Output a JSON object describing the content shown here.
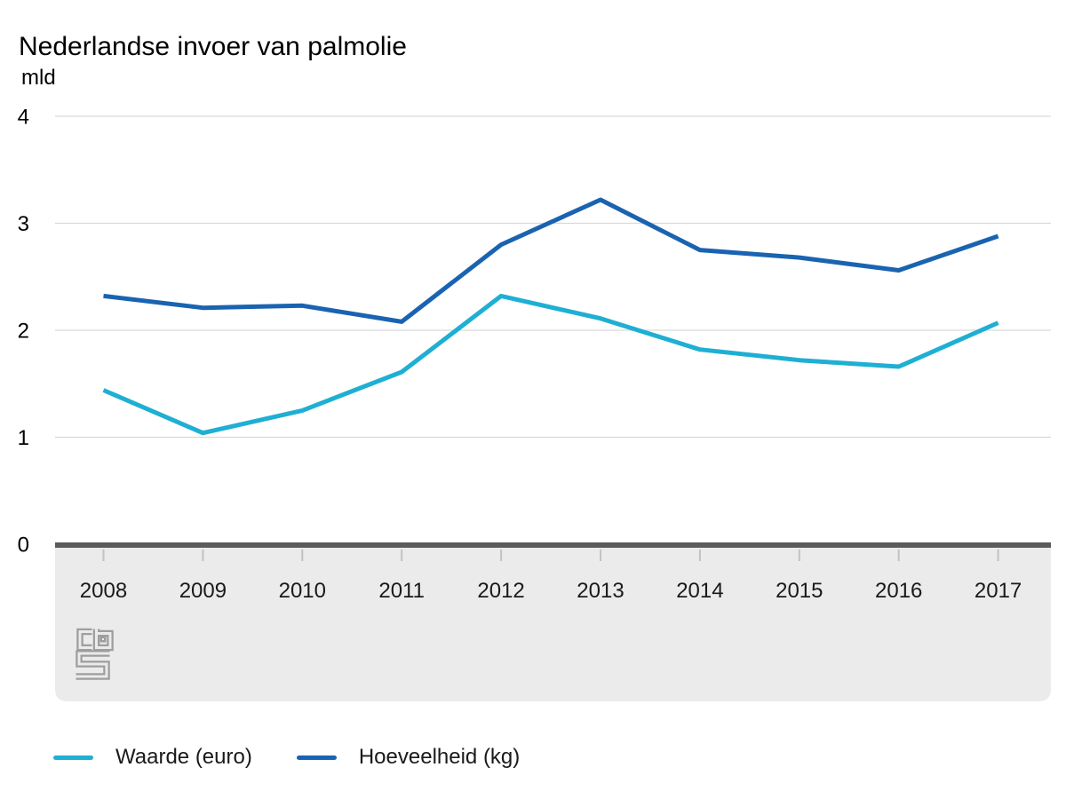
{
  "title": "Nederlandse invoer van palmolie",
  "y_axis": {
    "unit": "mld"
  },
  "legend": [
    {
      "label": "Waarde (euro)",
      "color": "#1fafd3"
    },
    {
      "label": "Hoeveelheid (kg)",
      "color": "#1a63b1"
    }
  ],
  "colors": {
    "grid": "#d9d9d9",
    "zero_axis": "#595b5d",
    "band": "#ebebeb",
    "year_tick": "#c2c2c2",
    "logo": "#9e9e9e",
    "text": "#1a1a1a"
  },
  "logo_name": "cbs-logo",
  "chart_data": {
    "type": "line",
    "title": "Nederlandse invoer van palmolie",
    "ylabel": "mld",
    "ylim": [
      0,
      4
    ],
    "y_ticks": [
      0,
      1,
      2,
      3,
      4
    ],
    "grid": true,
    "legend_position": "bottom",
    "x": [
      "2008",
      "2009",
      "2010",
      "2011",
      "2012",
      "2013",
      "2014",
      "2015",
      "2016",
      "2017"
    ],
    "series": [
      {
        "name": "Waarde (euro)",
        "color": "#1fafd3",
        "values": [
          1.44,
          1.04,
          1.25,
          1.61,
          2.32,
          2.11,
          1.82,
          1.72,
          1.66,
          2.07
        ]
      },
      {
        "name": "Hoeveelheid (kg)",
        "color": "#1a63b1",
        "values": [
          2.32,
          2.21,
          2.23,
          2.08,
          2.8,
          3.22,
          2.75,
          2.68,
          2.56,
          2.88
        ]
      }
    ]
  }
}
